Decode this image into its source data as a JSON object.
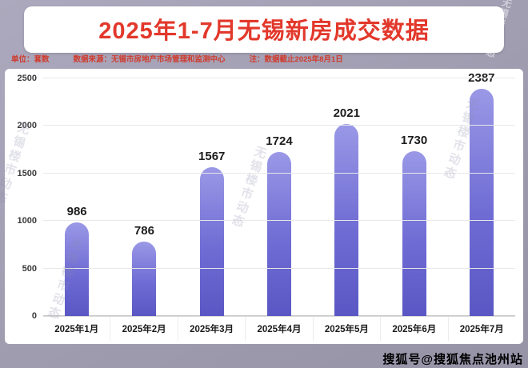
{
  "header": {
    "title": "2025年1-7月无锡新房成交数据"
  },
  "meta": {
    "unit": "单位：套数",
    "source": "数据来源：无锡市房地产市场管理和监测中心",
    "note": "注：数据截止2025年8月1日"
  },
  "watermark": {
    "text": "无锡楼市动态"
  },
  "footer": {
    "text": "搜狐号@搜狐焦点池州站"
  },
  "colors": {
    "title_red": "#e2382b",
    "meta_red": "#d03a2c",
    "bar_top": "#9a98e6",
    "bar_bottom": "#5a57c4",
    "background": "#a09cb0",
    "chart_background": "#ffffff",
    "value_label": "#1c1c1c"
  },
  "chart_data": {
    "type": "bar",
    "title": "2025年1-7月无锡新房成交数据",
    "categories": [
      "2025年1月",
      "2025年2月",
      "2025年3月",
      "2025年4月",
      "2025年5月",
      "2025年6月",
      "2025年7月"
    ],
    "values": [
      986,
      786,
      1567,
      1724,
      2021,
      1730,
      2387
    ],
    "xlabel": "",
    "ylabel": "",
    "ylim": [
      0,
      2500
    ],
    "yticks": [
      0,
      500,
      1000,
      1500,
      2000,
      2500
    ],
    "grid": true,
    "legend": "none"
  }
}
